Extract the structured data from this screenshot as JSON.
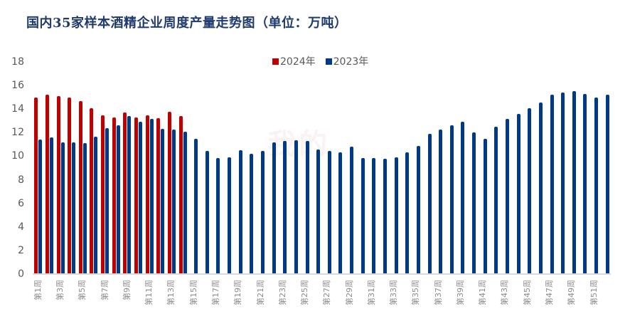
{
  "title": "国内35家样本酒精企业周度产量走势图（单位：万吨）",
  "legend": [
    {
      "label": "2024年",
      "color": "#c00000"
    },
    {
      "label": "2023年",
      "color": "#003a87"
    }
  ],
  "watermark": "我的",
  "chart_data": {
    "type": "bar",
    "title": "国内35家样本酒精企业周度产量走势图（单位：万吨）",
    "xlabel": "",
    "ylabel": "万吨",
    "ylim": [
      0,
      18
    ],
    "yticks": [
      0,
      2,
      4,
      6,
      8,
      10,
      12,
      14,
      16,
      18
    ],
    "grid": false,
    "legend_position": "top",
    "categories": [
      "第1周",
      "第2周",
      "第3周",
      "第4周",
      "第5周",
      "第6周",
      "第7周",
      "第8周",
      "第9周",
      "第10周",
      "第11周",
      "第12周",
      "第13周",
      "第14周",
      "第15周",
      "第16周",
      "第17周",
      "第18周",
      "第19周",
      "第20周",
      "第21周",
      "第22周",
      "第23周",
      "第24周",
      "第25周",
      "第26周",
      "第27周",
      "第28周",
      "第29周",
      "第30周",
      "第31周",
      "第32周",
      "第33周",
      "第34周",
      "第35周",
      "第36周",
      "第37周",
      "第38周",
      "第39周",
      "第40周",
      "第41周",
      "第42周",
      "第43周",
      "第44周",
      "第45周",
      "第46周",
      "第47周",
      "第48周",
      "第49周",
      "第50周",
      "第51周",
      "第52周"
    ],
    "xtick_labels": [
      "第1周",
      "第3周",
      "第5周",
      "第7周",
      "第9周",
      "第11周",
      "第13周",
      "第15周",
      "第17周",
      "第19周",
      "第21周",
      "第23周",
      "第25周",
      "第27周",
      "第29周",
      "第31周",
      "第33周",
      "第35周",
      "第37周",
      "第39周",
      "第41周",
      "第43周",
      "第45周",
      "第47周",
      "第49周",
      "第51周"
    ],
    "series": [
      {
        "name": "2024年",
        "color": "#c00000",
        "values": [
          15.0,
          15.2,
          15.1,
          15.0,
          14.7,
          14.05,
          13.45,
          13.3,
          13.7,
          13.3,
          13.45,
          13.2,
          13.75,
          13.4
        ]
      },
      {
        "name": "2023年",
        "color": "#003a87",
        "values": [
          11.4,
          11.6,
          11.15,
          11.15,
          11.1,
          11.65,
          12.4,
          12.6,
          13.4,
          12.95,
          13.15,
          12.35,
          12.25,
          12.1,
          11.5,
          10.45,
          9.85,
          9.9,
          10.5,
          10.2,
          10.45,
          11.15,
          11.3,
          11.35,
          11.3,
          10.6,
          10.45,
          10.3,
          10.8,
          9.85,
          9.85,
          9.8,
          9.9,
          10.3,
          10.9,
          11.9,
          12.25,
          12.6,
          12.9,
          12.05,
          11.5,
          12.5,
          13.15,
          13.6,
          14.05,
          14.55,
          15.2,
          15.4,
          15.55,
          15.3,
          15.0,
          15.2
        ]
      }
    ]
  }
}
